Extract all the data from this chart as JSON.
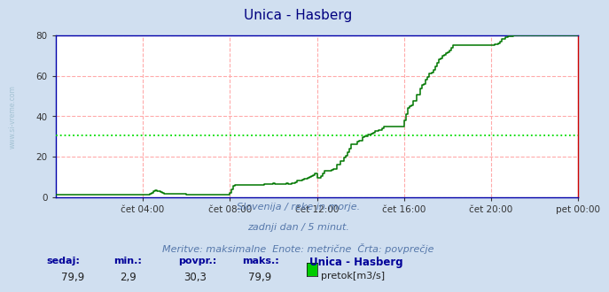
{
  "title": "Unica - Hasberg",
  "title_color": "#000080",
  "bg_color": "#d0dff0",
  "plot_bg_color": "#ffffff",
  "grid_color": "#ffaaaa",
  "avg_line_value": 30.3,
  "avg_line_color": "#00dd00",
  "flow_line_color": "#007700",
  "x_min": 0,
  "x_max": 288,
  "y_min": 0,
  "y_max": 80,
  "yticks": [
    0,
    20,
    40,
    60,
    80
  ],
  "left_watermark": "www.si-vreme.com",
  "subtitle_line1": "Slovenija / reke in morje.",
  "subtitle_line2": "zadnji dan / 5 minut.",
  "subtitle_line3": "Meritve: maksimalne  Enote: metrične  Črta: povprečje",
  "subtitle_color": "#5577aa",
  "xtick_labels": [
    "čet 04:00",
    "čet 08:00",
    "čet 12:00",
    "čet 16:00",
    "čet 20:00",
    "pet 00:00"
  ],
  "xtick_positions": [
    48,
    96,
    144,
    192,
    240,
    288
  ],
  "stat_labels": [
    "sedaj:",
    "min.:",
    "povpr.:",
    "maks.:"
  ],
  "stat_values": [
    "79,9",
    "2,9",
    "30,3",
    "79,9"
  ],
  "legend_station": "Unica - Hasberg",
  "legend_label": "pretok[m3/s]",
  "legend_color": "#00cc00",
  "stat_color": "#000099",
  "stat_val_color": "#222222",
  "axis_color": "#0000aa",
  "tick_color": "#333333"
}
